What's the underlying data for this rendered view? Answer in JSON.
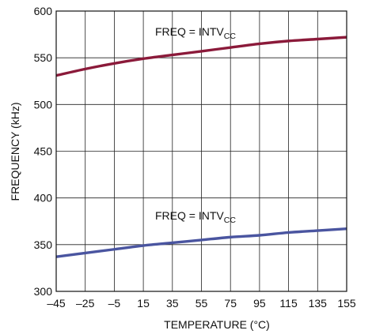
{
  "chart_data": {
    "type": "line",
    "xlabel": "TEMPERATURE (°C)",
    "ylabel": "FREQUENCY (kHz)",
    "xlim": [
      -45,
      155
    ],
    "ylim": [
      300,
      600
    ],
    "xticks": [
      -45,
      -25,
      -5,
      15,
      35,
      55,
      75,
      95,
      115,
      135,
      155
    ],
    "xtick_labels": [
      "–45",
      "–25",
      "–5",
      "15",
      "35",
      "55",
      "75",
      "95",
      "115",
      "135",
      "155"
    ],
    "yticks": [
      300,
      350,
      400,
      450,
      500,
      550,
      600
    ],
    "ytick_labels": [
      "300",
      "350",
      "400",
      "450",
      "500",
      "550",
      "600"
    ],
    "grid": true,
    "series": [
      {
        "color": "#8b1a3a",
        "x": [
          -45,
          -25,
          -5,
          15,
          35,
          55,
          75,
          95,
          115,
          135,
          155
        ],
        "y": [
          531,
          538,
          544,
          549,
          553,
          557,
          561,
          565,
          568,
          570,
          572
        ]
      },
      {
        "color": "#4a55a0",
        "x": [
          -45,
          -25,
          -5,
          15,
          35,
          55,
          75,
          95,
          115,
          135,
          155
        ],
        "y": [
          337,
          341,
          345,
          349,
          352,
          355,
          358,
          360,
          363,
          365,
          367
        ]
      }
    ],
    "annotations": [
      {
        "main": "FREQ = INTV",
        "sub": "CC"
      },
      {
        "main": "FREQ = INTV",
        "sub": "CC"
      }
    ]
  }
}
